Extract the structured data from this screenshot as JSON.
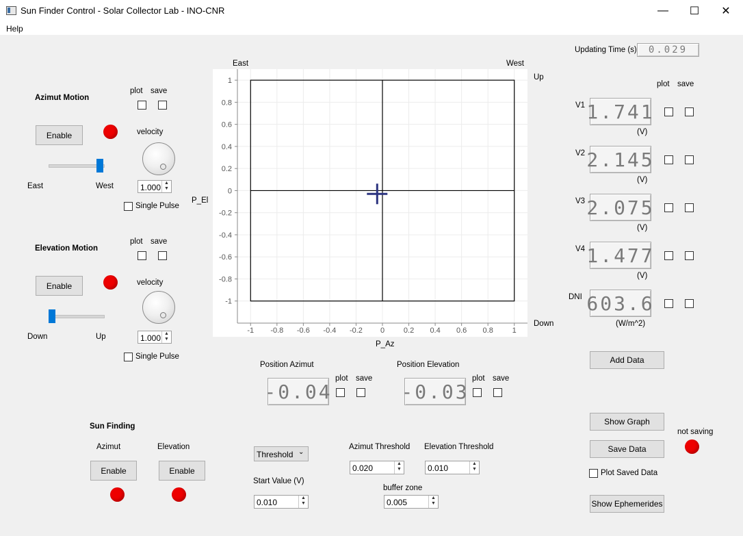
{
  "window": {
    "title": "Sun Finder Control - Solar Collector Lab - INO-CNR",
    "minimize": "—",
    "maximize": "☐",
    "close": "✕"
  },
  "menu": {
    "help": "Help"
  },
  "updating_time": {
    "label": "Updating Time (s)",
    "value": "0.029"
  },
  "azimut_motion": {
    "title": "Azimut Motion",
    "plot": "plot",
    "save": "save",
    "enable": "Enable",
    "velocity": "velocity",
    "left_label": "East",
    "right_label": "West",
    "spin": "1.000",
    "single_pulse": "Single Pulse",
    "slider_position": 1.0
  },
  "elevation_motion": {
    "title": "Elevation Motion",
    "plot": "plot",
    "save": "save",
    "enable": "Enable",
    "velocity": "velocity",
    "left_label": "Down",
    "right_label": "Up",
    "spin": "1.000",
    "single_pulse": "Single Pulse",
    "slider_position": 0.0
  },
  "chart_labels": {
    "east": "East",
    "west": "West",
    "up": "Up",
    "down": "Down",
    "ylabel": "P_El",
    "xlabel": "P_Az"
  },
  "chart_data": {
    "type": "scatter",
    "x": [
      -0.04
    ],
    "y": [
      -0.03
    ],
    "marker": "cross",
    "xlim": [
      -1.1,
      1.1
    ],
    "ylim": [
      -1.2,
      1.1
    ],
    "xticks": [
      "-1",
      "-0.8",
      "-0.6",
      "-0.4",
      "-0.2",
      "0",
      "0.2",
      "0.4",
      "0.6",
      "0.8",
      "1"
    ],
    "yticks": [
      "1",
      "0.8",
      "0.6",
      "0.4",
      "0.2",
      "0",
      "-0.2",
      "-0.4",
      "-0.6",
      "-0.8",
      "-1"
    ],
    "xlabel": "P_Az",
    "ylabel": "P_El",
    "grid": true
  },
  "voltages": {
    "plot": "plot",
    "save": "save",
    "rows": [
      {
        "label": "V1",
        "value": "1.741",
        "unit": "(V)"
      },
      {
        "label": "V2",
        "value": "2.145",
        "unit": "(V)"
      },
      {
        "label": "V3",
        "value": "2.075",
        "unit": "(V)"
      },
      {
        "label": "V4",
        "value": "1.477",
        "unit": "(V)"
      },
      {
        "label": "DNI",
        "value": "603.6",
        "unit": "(W/m^2)"
      }
    ]
  },
  "position": {
    "azimut_label": "Position Azimut",
    "azimut_value": "-0.04",
    "elevation_label": "Position Elevation",
    "elevation_value": "-0.03",
    "plot": "plot",
    "save": "save"
  },
  "sun_finding": {
    "title": "Sun Finding",
    "azimut": "Azimut",
    "elevation": "Elevation",
    "enable": "Enable"
  },
  "threshold": {
    "mode": "Threshold",
    "start_label": "Start Value (V)",
    "start_value": "0.010",
    "az_label": "Azimut Threshold",
    "az_value": "0.020",
    "el_label": "Elevation Threshold",
    "el_value": "0.010",
    "buffer_label": "buffer zone",
    "buffer_value": "0.005"
  },
  "actions": {
    "add_data": "Add Data",
    "show_graph": "Show Graph",
    "save_data": "Save Data",
    "plot_saved": "Plot Saved Data",
    "show_ephemerides": "Show Ephemerides",
    "not_saving": "not saving"
  },
  "colors": {
    "led": "#ee0000",
    "slider": "#0078d7",
    "marker": "#2c3480"
  }
}
